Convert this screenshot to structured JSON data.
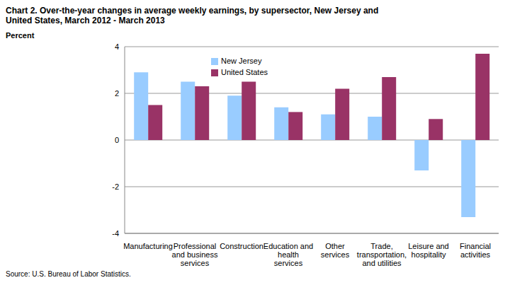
{
  "chart_data": {
    "type": "bar",
    "title": "Chart 2.  Over-the-year changes in average weekly earnings, by supersector, New Jersey and United States, March 2012 - March 2013",
    "y_label": "Percent",
    "source": "Source: U.S. Bureau of Labor Statistics.",
    "categories": [
      "Manufacturing",
      "Professional and business services",
      "Construction",
      "Education and health services",
      "Other services",
      "Trade, transportation, and utilities",
      "Leisure and hospitality",
      "Financial activities"
    ],
    "series": [
      {
        "name": "New Jersey",
        "color": "#99ccff",
        "values": [
          2.9,
          2.5,
          1.9,
          1.4,
          1.1,
          1.0,
          -1.3,
          -3.3
        ]
      },
      {
        "name": "United States",
        "color": "#993366",
        "values": [
          1.5,
          2.3,
          2.5,
          1.2,
          2.2,
          2.7,
          0.9,
          3.7
        ]
      }
    ],
    "ylim": [
      -4,
      4
    ],
    "yticks": [
      -4,
      -2,
      0,
      2,
      4
    ],
    "grid": true,
    "legend": "top"
  }
}
